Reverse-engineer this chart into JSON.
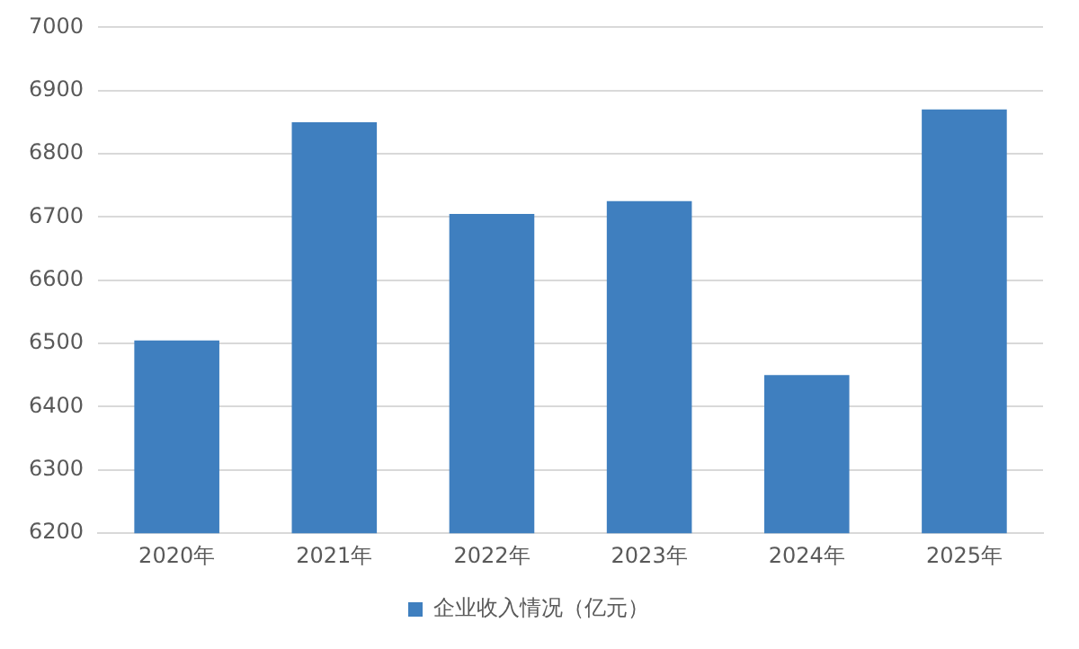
{
  "chart_data": {
    "type": "bar",
    "categories": [
      "2020年",
      "2021年",
      "2022年",
      "2023年",
      "2024年",
      "2025年"
    ],
    "series": [
      {
        "name": "企业收入情况（亿元）",
        "color": "#3f7fbf",
        "values": [
          6505,
          6850,
          6705,
          6725,
          6450,
          6870
        ]
      }
    ],
    "ylim": [
      6200,
      7000
    ],
    "yticks": [
      6200,
      6300,
      6400,
      6500,
      6600,
      6700,
      6800,
      6900,
      7000
    ],
    "grid": "y",
    "legend": "bottom"
  }
}
